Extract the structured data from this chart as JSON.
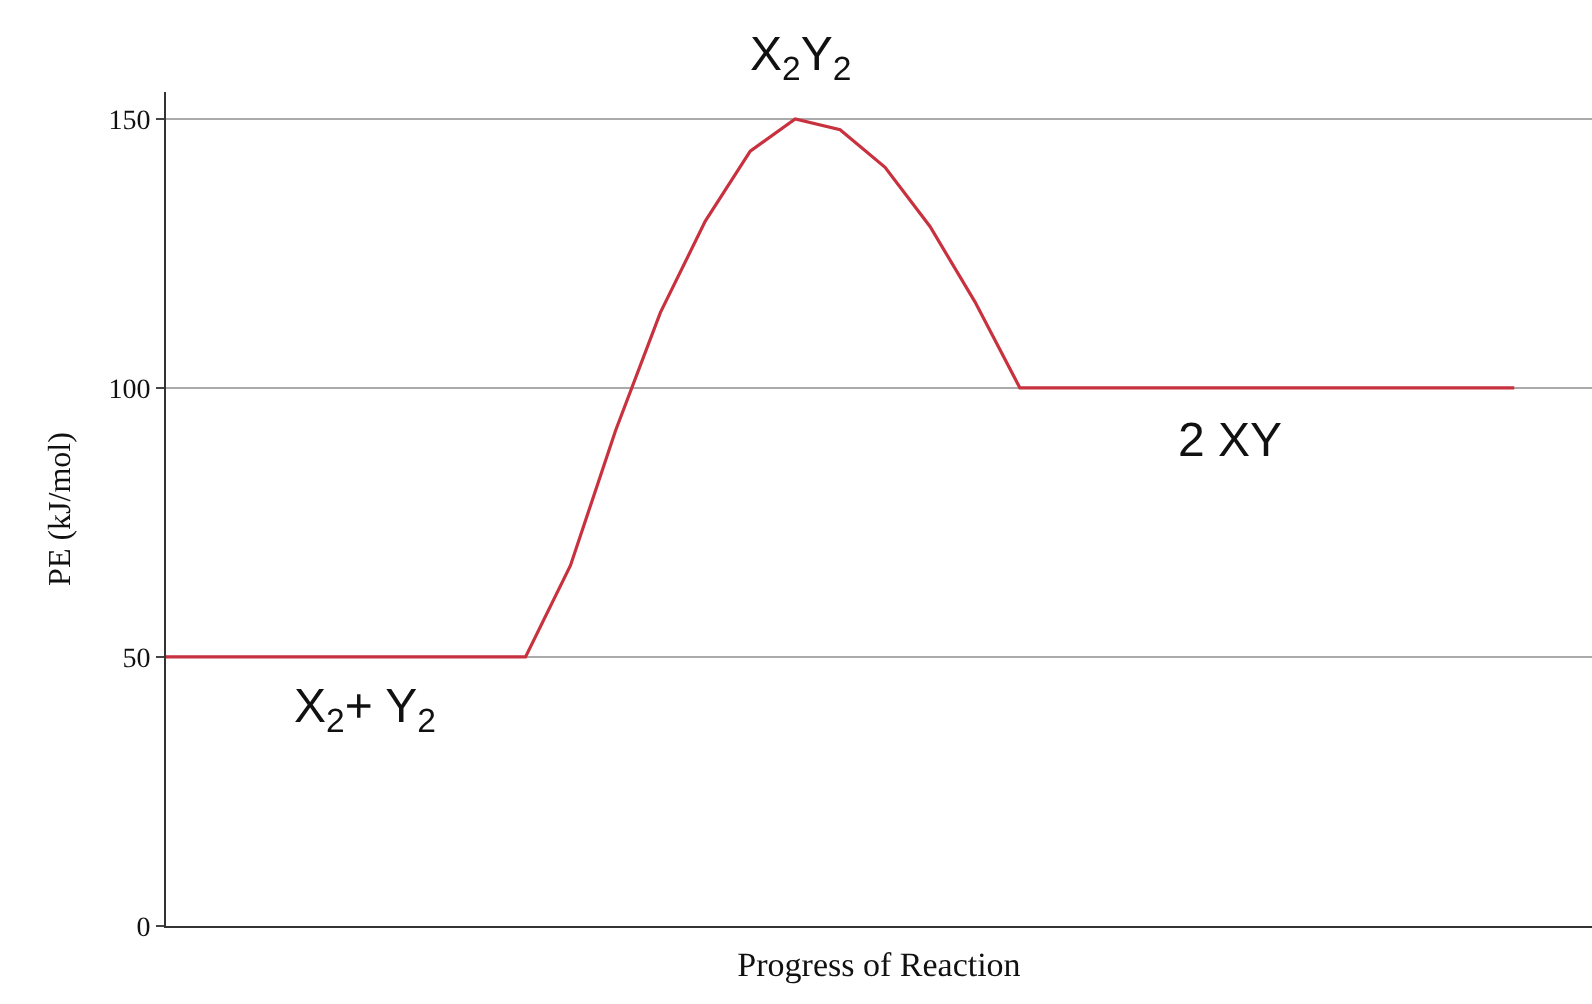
{
  "chart_data": {
    "type": "line",
    "xlabel": "Progress of Reaction",
    "ylabel": "PE (kJ/mol)",
    "categories": [
      null,
      null,
      null,
      null,
      null,
      null,
      null,
      null,
      null,
      null,
      null,
      null,
      null,
      null,
      null,
      null,
      null,
      null,
      null,
      null,
      null,
      null,
      null,
      null,
      null,
      null,
      null,
      null,
      null,
      null,
      null
    ],
    "series": [
      {
        "color": "#c8313e",
        "values": [
          50,
          50,
          50,
          50,
          50,
          50,
          50,
          50,
          50,
          67,
          92,
          114,
          131,
          144,
          150,
          148,
          141,
          130,
          116,
          100,
          100,
          100,
          100,
          100,
          100,
          100,
          100,
          100,
          100,
          100,
          100
        ]
      }
    ],
    "ylim": [
      0,
      155
    ],
    "yticks": [
      0,
      50,
      100,
      150
    ],
    "grid": "y",
    "marker": "none",
    "line_style": "solid",
    "annotations": [
      "X$_{2}$Y$_{2}$",
      "2 XY",
      "X$_{2}$+ Y$_{2}$"
    ]
  }
}
